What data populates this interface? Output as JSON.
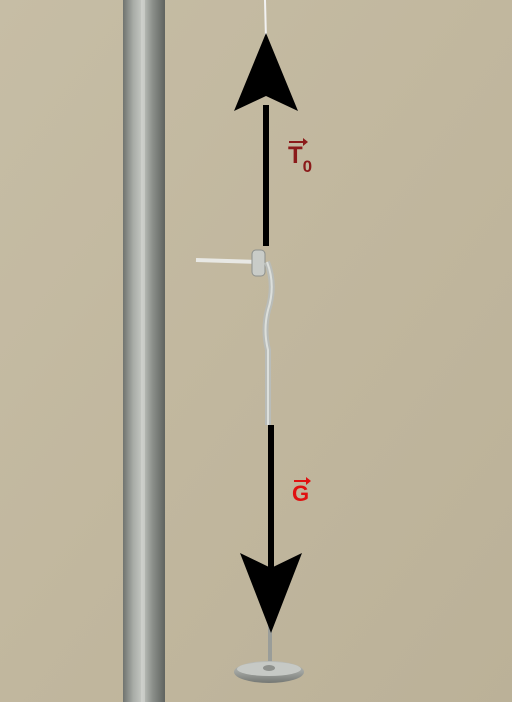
{
  "labels": {
    "tension_main": "T",
    "tension_subscript": "0",
    "weight": "G"
  },
  "colors": {
    "background": "#c2b8a0",
    "arrow": "#000000",
    "tension_label": "#8b1a1a",
    "weight_label": "#e01010",
    "rod": "#8f938f",
    "string": "#f2f2f2"
  }
}
